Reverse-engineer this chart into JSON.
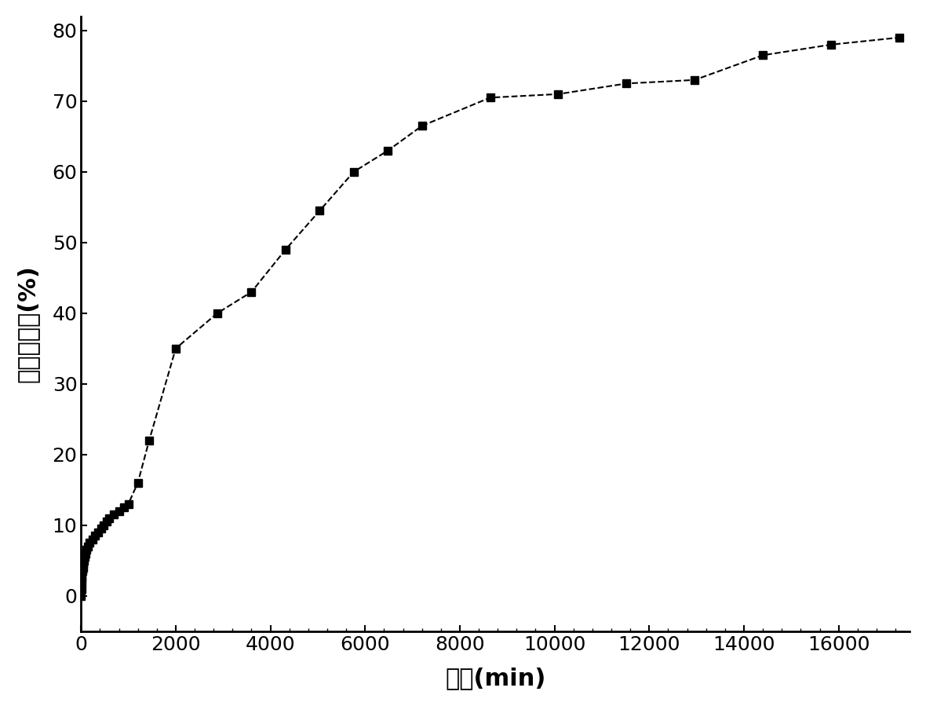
{
  "x": [
    0,
    5,
    10,
    15,
    20,
    30,
    40,
    50,
    60,
    80,
    100,
    120,
    150,
    180,
    240,
    300,
    360,
    420,
    480,
    540,
    600,
    700,
    800,
    900,
    1000,
    1200,
    1440,
    2000,
    2880,
    3600,
    4320,
    5040,
    5760,
    6480,
    7200,
    8640,
    10080,
    11520,
    12960,
    14400,
    15840,
    17280
  ],
  "y": [
    0,
    1,
    2,
    2.5,
    3,
    3.5,
    4,
    4.5,
    5,
    5.5,
    6,
    6.5,
    7,
    7.5,
    8,
    8.5,
    9,
    9.5,
    10,
    10.5,
    11,
    11.5,
    12,
    12.5,
    13,
    16,
    22,
    35,
    40,
    43,
    49,
    54.5,
    60,
    63,
    66.5,
    70.5,
    71,
    72.5,
    73,
    76.5,
    78,
    79
  ],
  "xlim": [
    0,
    17500
  ],
  "ylim": [
    -5,
    82
  ],
  "xticks": [
    0,
    2000,
    4000,
    6000,
    8000,
    10000,
    12000,
    14000,
    16000
  ],
  "yticks": [
    0,
    10,
    20,
    30,
    40,
    50,
    60,
    70,
    80
  ],
  "xlabel": "时间(min)",
  "ylabel": "药物释放量(%)",
  "line_color": "#000000",
  "marker": "s",
  "marker_size": 7,
  "line_style": "--",
  "line_width": 1.5,
  "background_color": "#ffffff",
  "tick_fontsize": 18,
  "label_fontsize": 22,
  "spine_linewidth": 2.0
}
